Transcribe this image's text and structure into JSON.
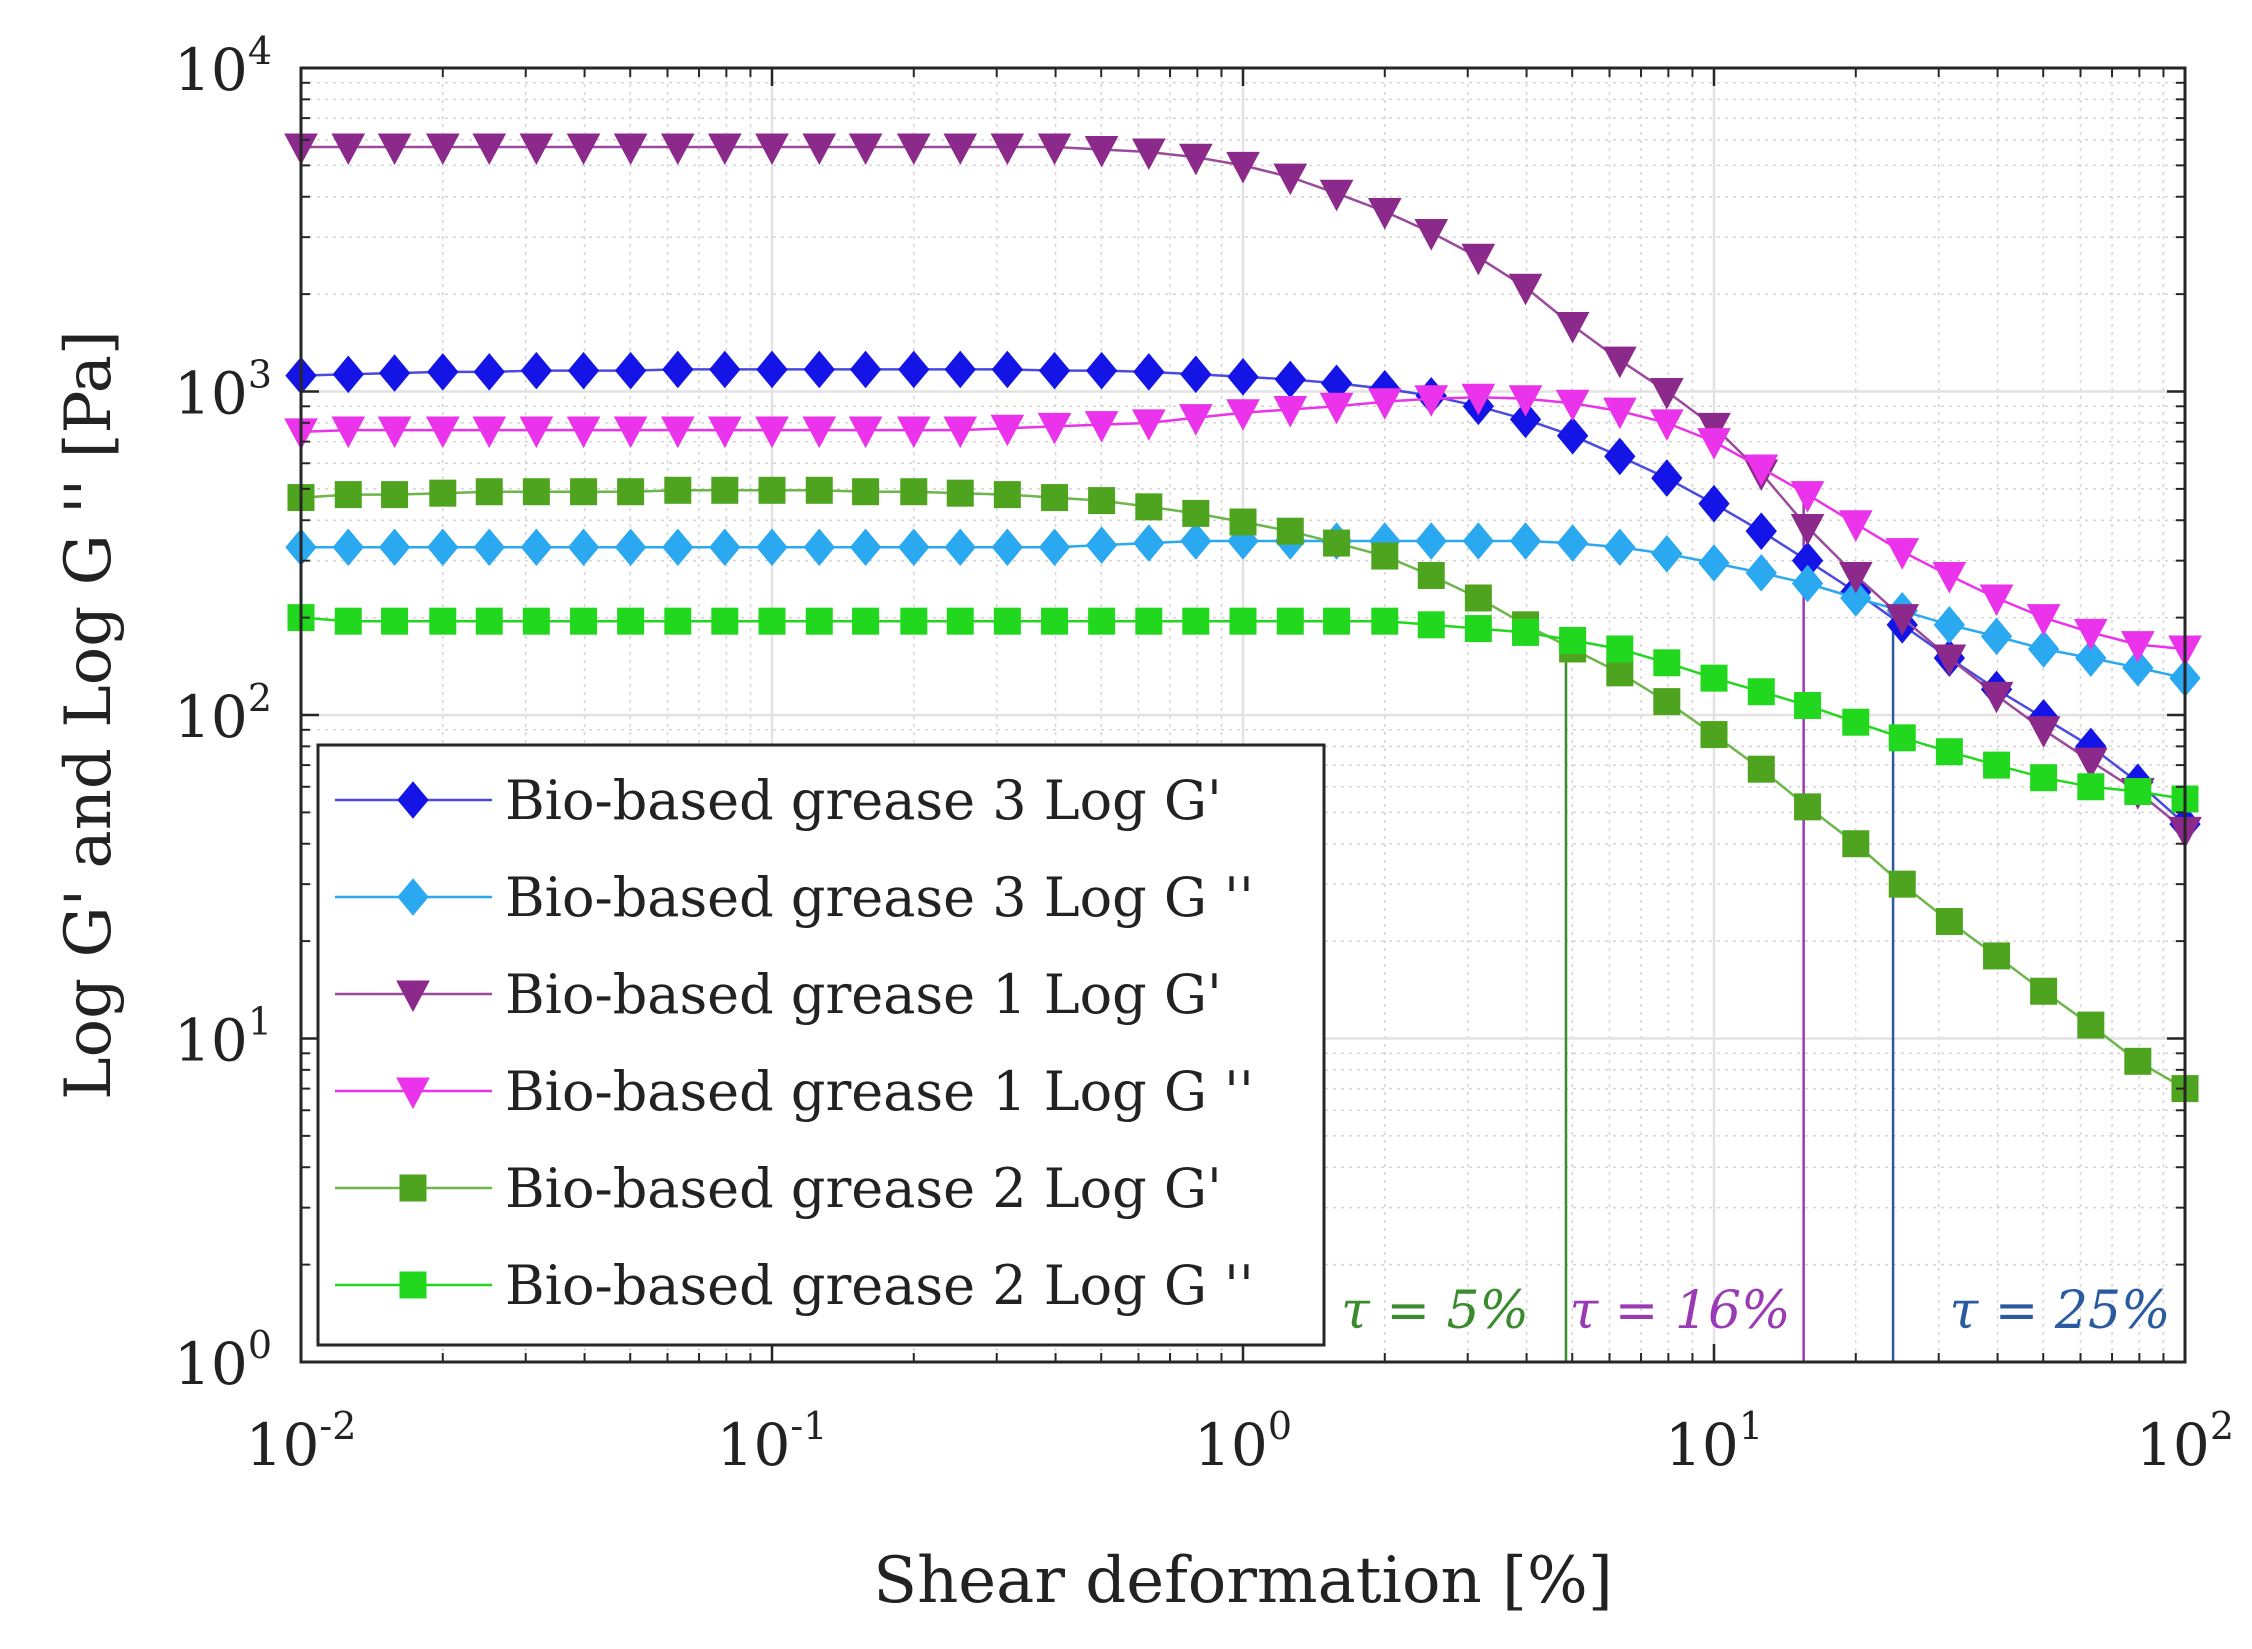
{
  "chart_data": {
    "type": "line",
    "xlabel": "Shear deformation [%]",
    "ylabel": "Log G' and Log G '' [Pa]",
    "xscale": "log",
    "yscale": "log",
    "xlim": [
      0.01,
      100
    ],
    "ylim": [
      1,
      10000
    ],
    "grid": true,
    "legend_position": "bottom-left",
    "xticks": [
      {
        "base": "10",
        "exp": "-2"
      },
      {
        "base": "10",
        "exp": "-1"
      },
      {
        "base": "10",
        "exp": "0"
      },
      {
        "base": "10",
        "exp": "1"
      },
      {
        "base": "10",
        "exp": "2"
      }
    ],
    "yticks": [
      {
        "base": "10",
        "exp": "0"
      },
      {
        "base": "10",
        "exp": "1"
      },
      {
        "base": "10",
        "exp": "2"
      },
      {
        "base": "10",
        "exp": "3"
      },
      {
        "base": "10",
        "exp": "4"
      }
    ],
    "x": [
      0.01,
      0.0126,
      0.0158,
      0.02,
      0.0251,
      0.0316,
      0.0398,
      0.0501,
      0.0631,
      0.0794,
      0.1,
      0.126,
      0.158,
      0.2,
      0.251,
      0.316,
      0.398,
      0.501,
      0.631,
      0.794,
      1,
      1.26,
      1.58,
      2,
      2.51,
      3.16,
      3.98,
      5.01,
      6.31,
      7.94,
      10,
      12.6,
      15.8,
      20,
      25.1,
      31.6,
      39.8,
      50.1,
      63.1,
      79.4,
      100
    ],
    "series": [
      {
        "name": "Bio-based grease 3 Log G'",
        "color": "#1414e6",
        "line_color": "#4a4ae0",
        "marker": "diamond",
        "values": [
          1120,
          1130,
          1140,
          1150,
          1150,
          1160,
          1160,
          1160,
          1170,
          1170,
          1170,
          1170,
          1170,
          1170,
          1170,
          1170,
          1160,
          1160,
          1150,
          1130,
          1110,
          1090,
          1060,
          1020,
          970,
          900,
          820,
          730,
          630,
          540,
          450,
          370,
          300,
          240,
          190,
          150,
          120,
          98,
          80,
          62,
          46
        ]
      },
      {
        "name": "Bio-based grease 3 Log G ''",
        "color": "#2aa8f0",
        "line_color": "#2aa8f0",
        "marker": "diamond",
        "values": [
          330,
          330,
          330,
          330,
          330,
          330,
          330,
          330,
          330,
          330,
          330,
          330,
          330,
          330,
          330,
          330,
          330,
          335,
          340,
          345,
          345,
          345,
          345,
          345,
          345,
          345,
          345,
          340,
          330,
          315,
          295,
          275,
          255,
          230,
          210,
          190,
          175,
          160,
          150,
          140,
          130
        ]
      },
      {
        "name": "Bio-based grease 1 Log G'",
        "color": "#8b2a8b",
        "line_color": "#9a4a9a",
        "marker": "triangle-down",
        "values": [
          5700,
          5700,
          5700,
          5700,
          5700,
          5700,
          5700,
          5700,
          5700,
          5700,
          5700,
          5700,
          5700,
          5700,
          5700,
          5700,
          5700,
          5600,
          5500,
          5300,
          5000,
          4600,
          4100,
          3600,
          3100,
          2600,
          2100,
          1600,
          1250,
          1000,
          780,
          560,
          380,
          270,
          200,
          150,
          115,
          90,
          72,
          58,
          44
        ]
      },
      {
        "name": "Bio-based grease 1 Log G ''",
        "color": "#ea33ea",
        "line_color": "#ea33ea",
        "marker": "triangle-down",
        "values": [
          750,
          760,
          760,
          760,
          760,
          760,
          760,
          760,
          760,
          760,
          760,
          760,
          760,
          760,
          760,
          770,
          780,
          790,
          800,
          830,
          860,
          880,
          900,
          930,
          950,
          960,
          950,
          920,
          870,
          800,
          700,
          580,
          480,
          390,
          320,
          270,
          230,
          200,
          180,
          165,
          160
        ]
      },
      {
        "name": "Bio-based grease 2 Log G'",
        "color": "#4ea41e",
        "line_color": "#6cb64a",
        "marker": "square",
        "values": [
          470,
          480,
          480,
          485,
          490,
          490,
          490,
          490,
          495,
          495,
          495,
          495,
          490,
          490,
          485,
          480,
          470,
          460,
          440,
          420,
          395,
          370,
          340,
          310,
          270,
          230,
          190,
          160,
          135,
          110,
          87,
          68,
          52,
          40,
          30,
          23,
          18,
          14,
          11,
          8.5,
          7
        ]
      },
      {
        "name": "Bio-based grease 2 Log G ''",
        "color": "#22d81e",
        "line_color": "#22d81e",
        "marker": "square",
        "values": [
          200,
          195,
          195,
          195,
          195,
          195,
          195,
          195,
          195,
          195,
          195,
          195,
          195,
          195,
          195,
          195,
          195,
          195,
          195,
          195,
          195,
          195,
          195,
          195,
          190,
          185,
          180,
          170,
          160,
          145,
          130,
          118,
          107,
          95,
          85,
          77,
          70,
          64,
          60,
          58,
          55
        ]
      }
    ],
    "annotations": [
      {
        "text": "τ = 5%",
        "x": 4.85,
        "color": "#3a8a2e"
      },
      {
        "text": "τ = 16%",
        "x": 15.5,
        "color": "#9a3ab4"
      },
      {
        "text": "τ = 25%",
        "x": 24,
        "color": "#2a5aa0"
      }
    ]
  }
}
